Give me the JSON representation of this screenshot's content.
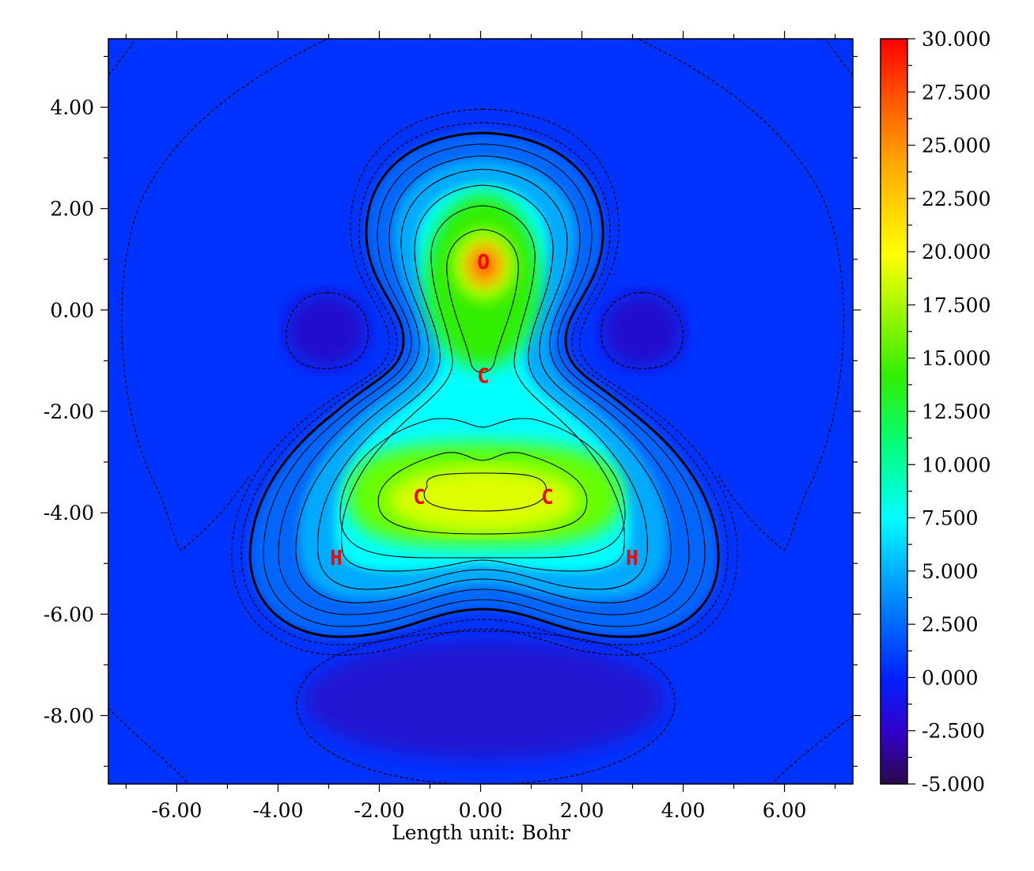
{
  "chart_data": {
    "type": "heatmap",
    "title": "",
    "xlabel": "Length unit: Bohr",
    "ylabel": "",
    "xlim": [
      -7.35,
      7.35
    ],
    "ylim": [
      -9.35,
      5.35
    ],
    "x_ticks": [
      "-6.00",
      "-4.00",
      "-2.00",
      "0.00",
      "2.00",
      "4.00",
      "6.00"
    ],
    "y_ticks": [
      "4.00",
      "2.00",
      "0.00",
      "-2.00",
      "-4.00",
      "-6.00",
      "-8.00"
    ],
    "colorbar": {
      "range": [
        -5.0,
        30.0
      ],
      "ticks": [
        "30.000",
        "27.500",
        "25.000",
        "22.500",
        "20.000",
        "17.500",
        "15.000",
        "12.500",
        "10.000",
        "7.500",
        "5.000",
        "2.500",
        "0.000",
        "-2.500",
        "-5.000"
      ],
      "colormap": "rainbow",
      "colors": [
        "#2a0a4a",
        "#3300cc",
        "#0022ff",
        "#00aaff",
        "#00ffff",
        "#00ff80",
        "#33ee00",
        "#ffff00",
        "#ffaa00",
        "#ff5500",
        "#ff0000"
      ]
    },
    "atoms": [
      {
        "label": "O",
        "x": 0.0,
        "y": 1.0
      },
      {
        "label": "C",
        "x": 0.0,
        "y": -1.25
      },
      {
        "label": "C",
        "x": -1.2,
        "y": -3.6
      },
      {
        "label": "C",
        "x": 1.3,
        "y": -3.6
      },
      {
        "label": "H",
        "x": -2.85,
        "y": -4.8
      },
      {
        "label": "H",
        "x": 2.95,
        "y": -4.8
      }
    ],
    "approx_peak_values": {
      "O": 27.5,
      "C_C_bond": 21.0
    }
  }
}
